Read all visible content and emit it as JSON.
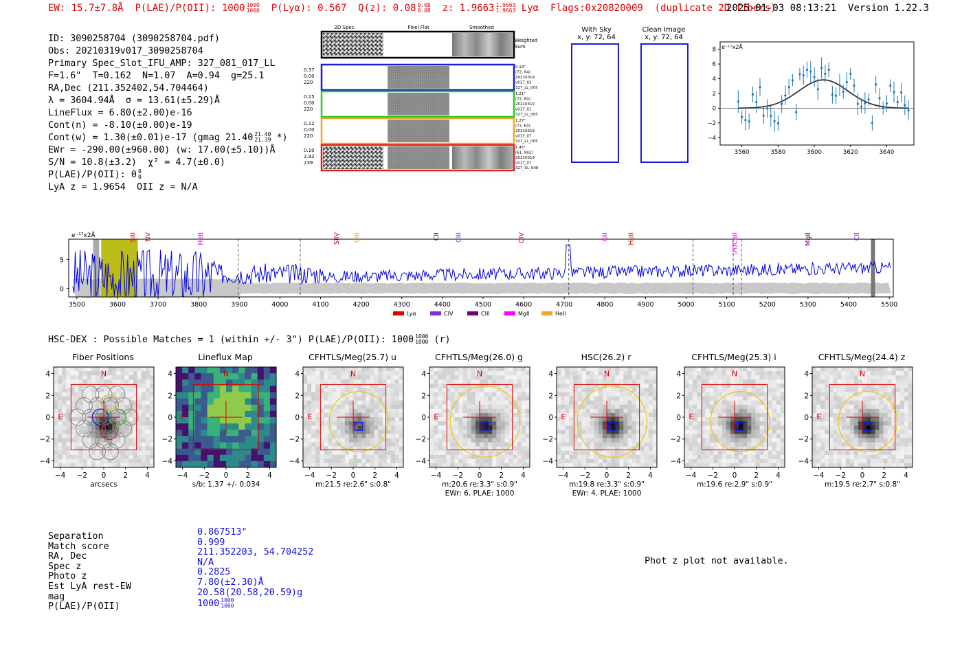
{
  "header": {
    "ew": "EW: 15.7±7.8Å",
    "plae_label": "P(LAE)/P(OII): 1000",
    "plae_frac_top": "1000",
    "plae_frac_bot": "1000",
    "plya": "P(Lyα): 0.567",
    "q": "Q(z): 0.08",
    "q_top": "0.08",
    "q_bot": "0.08",
    "z": "z: 1.9663",
    "z_top": "1.9663",
    "z_bot": "1.9663",
    "z_line": "Lyα",
    "flags": "Flags:0x20820009",
    "note": "(duplicate 2D fibers)",
    "datetime": "2025-01-03 08:13:21",
    "version": "Version 1.22.3"
  },
  "info": {
    "id": "ID: 3090258704 (3090258704.pdf)",
    "obs": "Obs: 20210319v017_3090258704",
    "slot": "Primary Spec_Slot_IFU_AMP: 327_081_017_LL",
    "fit": "F=1.6\"  T=0.162  N=1.07  A=0.94  g=25.1",
    "radec": "RA,Dec (211.352402,54.704464)",
    "lambda": "λ = 3604.94Å  σ = 13.61(±5.29)Å",
    "lineflux": "LineFlux = 6.80(±2.00)e-16",
    "contn": "Cont(n) = -8.10(±0.00)e-19",
    "contw": "Cont(w) = 1.30(±0.01)e-17 (gmag 21.40",
    "contw_top": "21.40",
    "contw_bot": "21.39",
    "contw_end": "*)",
    "ewr": "EWr = -290.00(±960.00) (w: 17.00(±5.10))Å",
    "sn": "S/N = 10.8(±3.2)  χ² = 4.7(±0.0)",
    "plae": "P(LAE)/P(OII): 0",
    "plae_top": "0",
    "plae_bot": "0",
    "lyaz": "LyA z = 1.9654  OII z = N/A"
  },
  "twod": {
    "col_headers": [
      "2D Spec",
      "Pixel Flat",
      "Smoothed"
    ],
    "weighted_label": "Weighted Sum",
    "rows": [
      {
        "left": [
          "0.37",
          "0.00",
          "220"
        ],
        "right": [
          "0.19\"",
          "(72, 64)",
          "20210319",
          "v017_03",
          "327_LL_005"
        ],
        "color": "#1a1ae0"
      },
      {
        "left": [
          "0.15",
          "0.00",
          "220"
        ],
        "right": [
          "1.21\"",
          "(72, 64)",
          "20210319",
          "v017_01",
          "327_LL_005"
        ],
        "color": "#22cc22"
      },
      {
        "left": [
          "0.12",
          "0.00",
          "220"
        ],
        "right": [
          "1.27\"",
          "(72, 63)",
          "20210319",
          "v017_07",
          "327_LL_005"
        ],
        "color": "#f5a623"
      },
      {
        "left": [
          "0.10",
          "2.92",
          "239"
        ],
        "right": [
          "1.45\"",
          "(61, 992)",
          "20210319",
          "v017_07",
          "327_RL_098"
        ],
        "color": "#e02020"
      }
    ]
  },
  "cutouts": {
    "with_sky": "With Sky",
    "with_sky_xy": "x, y: 72, 64",
    "clean": "Clean Image",
    "clean_xy": "x, y: 72, 64"
  },
  "fitplot": {
    "unit": "e⁻¹⁷x2Å",
    "yticks": [
      "8",
      "6",
      "4",
      "2",
      "0",
      "−2",
      "−4"
    ],
    "xticks": [
      "3560",
      "3580",
      "3600",
      "3620",
      "3640"
    ]
  },
  "chart_data": {
    "type": "line",
    "title": "",
    "ylabel": "e⁻¹⁷x2Å",
    "xlim": [
      3490,
      5510
    ],
    "ylim": [
      -1.5,
      8.5
    ],
    "xticks": [
      "3500",
      "3600",
      "3700",
      "3800",
      "3900",
      "4000",
      "4100",
      "4200",
      "4300",
      "4400",
      "4500",
      "4600",
      "4700",
      "4800",
      "4900",
      "5000",
      "5100",
      "5200",
      "5300",
      "5400",
      "5500"
    ],
    "yticks": [
      "5",
      "0"
    ],
    "lines": [
      {
        "name": "NV",
        "x": 3675,
        "color": "#e00000"
      },
      {
        "name": "SiII",
        "x": 3638,
        "color": "#e00000"
      },
      {
        "name": "HeII",
        "x": 3805,
        "color": "#cc00cc"
      },
      {
        "name": "SiIV",
        "x": 4140,
        "color": "#e00000"
      },
      {
        "name": "CIII",
        "x": 4190,
        "color": "#f5a623"
      },
      {
        "name": "CII",
        "x": 4385,
        "color": "#7a007a"
      },
      {
        "name": "CIII",
        "x": 4440,
        "color": "#8a2be2"
      },
      {
        "name": "CIV",
        "x": 4595,
        "color": "#e00000"
      },
      {
        "name": "OII",
        "x": 4800,
        "color": "#ff00ff"
      },
      {
        "name": "HeII",
        "x": 4865,
        "color": "#e00000"
      },
      {
        "name": "(H)CaII",
        "x": 5120,
        "color": "#ff00ff"
      },
      {
        "name": "MgII",
        "x": 5300,
        "color": "#7a007a"
      },
      {
        "name": "CII",
        "x": 5420,
        "color": "#8a2be2"
      }
    ],
    "legend": [
      {
        "name": "Lyα",
        "color": "#e00000"
      },
      {
        "name": "CIV",
        "color": "#8a2be2"
      },
      {
        "name": "CIII",
        "color": "#7a007a"
      },
      {
        "name": "MgII",
        "color": "#ff00ff"
      },
      {
        "name": "HeII",
        "color": "#f5a623"
      }
    ],
    "highlight_range": [
      3560,
      3650
    ],
    "dashed_lines": [
      3897,
      4050,
      4711,
      5017,
      5116,
      5136
    ]
  },
  "hsc": {
    "title": "HSC-DEX : Possible Matches = 1 (within +/- 3\")  P(LAE)/P(OII): 1000",
    "frac_top": "1000",
    "frac_bot": "1000",
    "suffix": "(r)"
  },
  "stamps": [
    {
      "title": "Fiber Positions",
      "caption": "arcsecs",
      "caption2": ""
    },
    {
      "title": "Lineflux Map",
      "caption": "s/b: 1.37 +/- 0.034",
      "caption2": ""
    },
    {
      "title": "CFHTLS/Meg(25.7) u",
      "caption": "m:21.5  re:2.6\"  s:0.8\"",
      "caption2": ""
    },
    {
      "title": "CFHTLS/Meg(26.0) g",
      "caption": "m:20.6  re:3.3\"  s:0.9\"",
      "caption2": "EWr: 6, PLAE: 1000"
    },
    {
      "title": "HSC(26.2) r",
      "caption": "m:19.8  re:3.3\"  s:0.9\"",
      "caption2": "EWr: 4, PLAE: 1000"
    },
    {
      "title": "CFHTLS/Meg(25.3) i",
      "caption": "m:19.6  re:2.9\"  s:0.9\"",
      "caption2": ""
    },
    {
      "title": "CFHTLS/Meg(24.4) z",
      "caption": "m:19.5  re:2.7\"  s:0.8\"",
      "caption2": ""
    }
  ],
  "stamp_axis": {
    "yticks": [
      "4",
      "2",
      "0",
      "−2",
      "−4"
    ],
    "xticks": [
      "−4",
      "−2",
      "0",
      "2",
      "4"
    ],
    "n": "N",
    "e": "E"
  },
  "match": {
    "labels": [
      "Separation",
      "Match score",
      "RA, Dec",
      "Spec z",
      "Photo z",
      "Est LyA rest-EW",
      "mag",
      "P(LAE)/P(OII)"
    ],
    "values": [
      "0.867513\"",
      "0.999",
      "211.352203, 54.704252",
      "N/A",
      "0.2825",
      "7.80(±2.30)Å",
      "20.58(20.58,20.59)g",
      "1000"
    ],
    "frac_top": "1000",
    "frac_bot": "1000"
  },
  "photz_text": "Phot z plot not available."
}
